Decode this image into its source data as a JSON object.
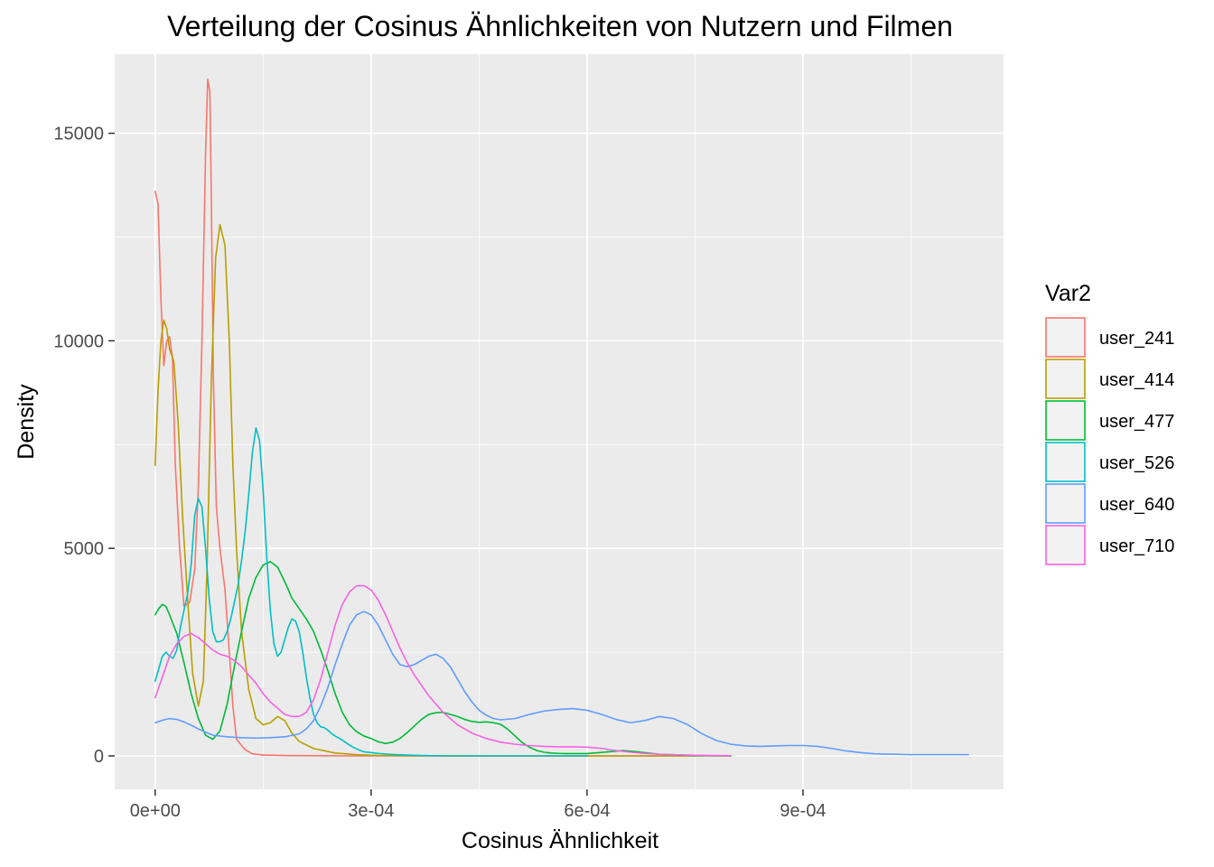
{
  "chart_data": {
    "type": "line",
    "title": "Verteilung der Cosinus Ähnlichkeiten von Nutzern und Filmen",
    "xlabel": "Cosinus Ähnlichkeit",
    "ylabel": "Density",
    "xlim": [
      -5.62e-05,
      0.0011786
    ],
    "ylim": [
      -805,
      16905
    ],
    "x_ticks": [
      0,
      0.0003,
      0.0006,
      0.0009
    ],
    "x_tick_labels": [
      "0e+00",
      "3e-04",
      "6e-04",
      "9e-04"
    ],
    "x_minor_ticks": [
      0.00015,
      0.00045,
      0.00075,
      0.00105
    ],
    "y_ticks": [
      0,
      5000,
      10000,
      15000
    ],
    "y_tick_labels": [
      "0",
      "5000",
      "10000",
      "15000"
    ],
    "y_minor_ticks": [
      2500,
      7500,
      12500
    ],
    "grid": true,
    "panel_background": "#EBEBEB",
    "grid_color": "#FFFFFF",
    "legend": {
      "title": "Var2",
      "position": "right"
    },
    "series": [
      {
        "name": "user_241",
        "color": "#F8766D",
        "x": [
          0,
          4e-06,
          8e-06,
          1.2e-05,
          1.6e-05,
          2e-05,
          2.4e-05,
          2.8e-05,
          3.4e-05,
          4e-05,
          4.8e-05,
          5.5e-05,
          6e-05,
          6.5e-05,
          7e-05,
          7.3e-05,
          7.6e-05,
          7.8e-05,
          8.1e-05,
          8.5e-05,
          9e-05,
          9.7e-05,
          0.000103,
          0.000108,
          0.000113,
          0.000125,
          0.000135,
          0.00015,
          0.00018,
          0.00022,
          0.0003,
          0.0004,
          0.0005,
          0.0006,
          0.0007,
          0.00075
        ],
        "y": [
          13600,
          13300,
          11000,
          9400,
          10000,
          10100,
          9600,
          7000,
          5000,
          3600,
          3700,
          4500,
          6500,
          10000,
          14500,
          16300,
          16000,
          13500,
          9000,
          6000,
          5000,
          4000,
          2500,
          1200,
          400,
          150,
          50,
          20,
          10,
          5,
          0,
          0,
          0,
          0,
          0,
          0
        ]
      },
      {
        "name": "user_414",
        "color": "#B79F00",
        "x": [
          0,
          4e-06,
          8e-06,
          1.2e-05,
          1.6e-05,
          2e-05,
          2.6e-05,
          3.2e-05,
          3.8e-05,
          4.5e-05,
          5.2e-05,
          6e-05,
          6.7e-05,
          7.2e-05,
          7.8e-05,
          8.4e-05,
          9e-05,
          9.7e-05,
          0.000103,
          0.000108,
          0.000113,
          0.00012,
          0.00013,
          0.00014,
          0.00015,
          0.00016,
          0.00017,
          0.00018,
          0.00019,
          0.0002,
          0.00022,
          0.00025,
          0.00028,
          0.00031,
          0.00035,
          0.00045,
          0.0006,
          0.0008
        ],
        "y": [
          7000,
          8800,
          10000,
          10500,
          10300,
          9800,
          9500,
          8000,
          5800,
          3800,
          2000,
          1200,
          1800,
          4500,
          9000,
          12000,
          12800,
          12300,
          10000,
          7000,
          5000,
          3000,
          1600,
          900,
          750,
          800,
          950,
          850,
          550,
          350,
          180,
          70,
          30,
          10,
          3,
          0,
          0,
          0
        ]
      },
      {
        "name": "user_477",
        "color": "#00BA38",
        "x": [
          0,
          5e-06,
          1e-05,
          1.5e-05,
          2e-05,
          3e-05,
          4e-05,
          5e-05,
          6e-05,
          7e-05,
          8e-05,
          9e-05,
          0.0001,
          0.00011,
          0.00012,
          0.00013,
          0.00014,
          0.00015,
          0.00016,
          0.00017,
          0.00018,
          0.00019,
          0.0002,
          0.00021,
          0.00022,
          0.00023,
          0.00024,
          0.00025,
          0.00026,
          0.00027,
          0.00028,
          0.00029,
          0.0003,
          0.00031,
          0.00032,
          0.00033,
          0.00034,
          0.00035,
          0.00036,
          0.00037,
          0.00038,
          0.00039,
          0.0004,
          0.00041,
          0.00042,
          0.00043,
          0.00044,
          0.00045,
          0.00046,
          0.00047,
          0.00048,
          0.00049,
          0.0005,
          0.00051,
          0.00052,
          0.00053,
          0.00054,
          0.00055,
          0.00056,
          0.00057,
          0.0006,
          0.00063,
          0.00065,
          0.00067,
          0.0007,
          0.00075,
          0.0008
        ],
        "y": [
          3400,
          3550,
          3650,
          3600,
          3400,
          2950,
          2250,
          1500,
          900,
          500,
          400,
          600,
          1250,
          2150,
          3000,
          3800,
          4300,
          4600,
          4680,
          4550,
          4200,
          3800,
          3550,
          3300,
          3000,
          2550,
          2050,
          1500,
          1050,
          750,
          580,
          480,
          420,
          340,
          300,
          330,
          420,
          560,
          720,
          880,
          1000,
          1040,
          1050,
          1000,
          950,
          880,
          830,
          810,
          820,
          800,
          760,
          640,
          480,
          320,
          210,
          130,
          90,
          70,
          60,
          55,
          55,
          100,
          130,
          100,
          40,
          10,
          0
        ]
      },
      {
        "name": "user_526",
        "color": "#00BFC4",
        "x": [
          0,
          5e-06,
          1e-05,
          1.5e-05,
          2e-05,
          2.5e-05,
          3e-05,
          3.5e-05,
          4e-05,
          4.5e-05,
          5e-05,
          5.5e-05,
          6e-05,
          6.5e-05,
          7e-05,
          7.5e-05,
          8e-05,
          8.5e-05,
          9e-05,
          9.5e-05,
          0.0001,
          0.000105,
          0.00011,
          0.000115,
          0.00012,
          0.000125,
          0.00013,
          0.000135,
          0.00014,
          0.000145,
          0.00015,
          0.000155,
          0.00016,
          0.000165,
          0.00017,
          0.000175,
          0.00018,
          0.000185,
          0.00019,
          0.000195,
          0.0002,
          0.000205,
          0.00021,
          0.000215,
          0.00022,
          0.000225,
          0.00023,
          0.000235,
          0.00024,
          0.000245,
          0.00025,
          0.000255,
          0.00026,
          0.000265,
          0.00027,
          0.000275,
          0.00028,
          0.000285,
          0.00029,
          0.0003,
          0.00031,
          0.00032,
          0.00033,
          0.00035,
          0.00037,
          0.0004,
          0.00045,
          0.0005,
          0.0006
        ],
        "y": [
          1800,
          2100,
          2400,
          2500,
          2400,
          2350,
          2550,
          3100,
          3500,
          3900,
          4600,
          5800,
          6200,
          6000,
          5000,
          3800,
          3000,
          2750,
          2750,
          2800,
          3000,
          3300,
          3700,
          4100,
          4700,
          5400,
          6300,
          7300,
          7900,
          7600,
          6400,
          4800,
          3500,
          2700,
          2400,
          2500,
          2800,
          3100,
          3300,
          3250,
          3000,
          2500,
          1900,
          1400,
          1000,
          800,
          700,
          680,
          620,
          540,
          480,
          430,
          380,
          320,
          260,
          210,
          170,
          130,
          100,
          80,
          60,
          45,
          35,
          20,
          10,
          0,
          0,
          0,
          0
        ]
      },
      {
        "name": "user_640",
        "color": "#619CFF",
        "x": [
          0,
          1e-05,
          2e-05,
          3e-05,
          4e-05,
          5e-05,
          6e-05,
          7e-05,
          8e-05,
          0.0001,
          0.00012,
          0.00014,
          0.00016,
          0.00018,
          0.0002,
          0.00021,
          0.00022,
          0.00023,
          0.00024,
          0.00025,
          0.00026,
          0.00027,
          0.00028,
          0.00029,
          0.0003,
          0.00031,
          0.00032,
          0.00033,
          0.00034,
          0.00035,
          0.00036,
          0.00037,
          0.00038,
          0.00039,
          0.0004,
          0.00041,
          0.00042,
          0.00043,
          0.00044,
          0.00045,
          0.00046,
          0.00047,
          0.00048,
          0.0005,
          0.00052,
          0.00054,
          0.00056,
          0.00058,
          0.0006,
          0.00062,
          0.00064,
          0.00066,
          0.00068,
          0.0007,
          0.00072,
          0.00074,
          0.00076,
          0.00078,
          0.0008,
          0.00082,
          0.00084,
          0.00086,
          0.00088,
          0.0009,
          0.00092,
          0.00094,
          0.00096,
          0.00098,
          0.001,
          0.00105,
          0.00109,
          0.00113
        ],
        "y": [
          800,
          860,
          900,
          880,
          820,
          740,
          650,
          570,
          500,
          460,
          440,
          430,
          440,
          460,
          530,
          650,
          850,
          1200,
          1650,
          2200,
          2700,
          3150,
          3400,
          3480,
          3400,
          3150,
          2800,
          2450,
          2200,
          2150,
          2200,
          2300,
          2400,
          2450,
          2350,
          2150,
          1850,
          1550,
          1300,
          1100,
          980,
          900,
          870,
          900,
          1000,
          1080,
          1120,
          1140,
          1100,
          1000,
          880,
          800,
          850,
          950,
          900,
          750,
          530,
          370,
          280,
          240,
          230,
          240,
          250,
          250,
          230,
          180,
          120,
          80,
          50,
          30,
          30,
          30
        ]
      },
      {
        "name": "user_710",
        "color": "#F564E3",
        "x": [
          0,
          1e-05,
          2e-05,
          3e-05,
          4e-05,
          5e-05,
          6e-05,
          7e-05,
          8e-05,
          9e-05,
          0.0001,
          0.00011,
          0.00012,
          0.00013,
          0.00014,
          0.00015,
          0.00016,
          0.00017,
          0.00018,
          0.00019,
          0.0002,
          0.00021,
          0.00022,
          0.00023,
          0.00024,
          0.00025,
          0.00026,
          0.00027,
          0.00028,
          0.00029,
          0.0003,
          0.00031,
          0.00032,
          0.00033,
          0.00034,
          0.00035,
          0.00036,
          0.00037,
          0.00038,
          0.00039,
          0.0004,
          0.00042,
          0.00044,
          0.00046,
          0.00048,
          0.0005,
          0.00052,
          0.00054,
          0.00056,
          0.00058,
          0.0006,
          0.00062,
          0.00064,
          0.00066,
          0.00068,
          0.0007,
          0.00075,
          0.0008
        ],
        "y": [
          1400,
          1900,
          2400,
          2700,
          2880,
          2950,
          2850,
          2700,
          2550,
          2450,
          2400,
          2300,
          2150,
          1950,
          1750,
          1500,
          1300,
          1150,
          1000,
          950,
          950,
          1050,
          1350,
          1850,
          2500,
          3150,
          3650,
          3950,
          4100,
          4100,
          4000,
          3750,
          3400,
          3000,
          2600,
          2250,
          1950,
          1700,
          1450,
          1250,
          1050,
          750,
          550,
          420,
          330,
          280,
          250,
          230,
          220,
          220,
          210,
          180,
          130,
          90,
          60,
          40,
          15,
          5
        ]
      }
    ]
  }
}
